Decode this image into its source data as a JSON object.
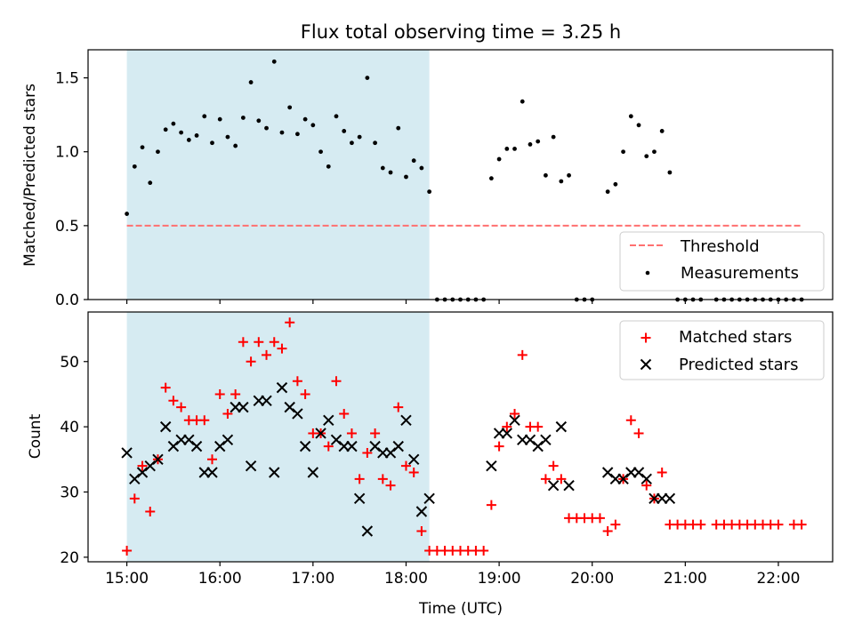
{
  "figure": {
    "title": "Flux total observing time = 3.25 h",
    "xlabel": "Time (UTC)",
    "x_ticks": [
      "15:00",
      "16:00",
      "17:00",
      "18:00",
      "19:00",
      "20:00",
      "21:00",
      "22:00"
    ]
  },
  "colors": {
    "shade": "#add8e6",
    "threshold": "#ff7070",
    "measurements": "#000000",
    "matched": "#ff0000",
    "predicted": "#000000"
  },
  "chart_data": [
    {
      "type": "scatter",
      "ylabel": "Matched/Predicted stars",
      "xlim": [
        "14:35",
        "22:35"
      ],
      "ylim": [
        0,
        1.69
      ],
      "y_ticks": [
        "0.0",
        "0.5",
        "1.0",
        "1.5"
      ],
      "observing_window": [
        "15:00",
        "18:15"
      ],
      "legend": {
        "position": "lower right",
        "entries": [
          "Threshold",
          "Measurements"
        ]
      },
      "threshold": {
        "name": "Threshold",
        "y": 0.5,
        "x_range": [
          "15:00",
          "22:15"
        ]
      },
      "series": [
        {
          "name": "Measurements",
          "points": [
            [
              "15:00",
              0.58
            ],
            [
              "15:05",
              0.9
            ],
            [
              "15:10",
              1.03
            ],
            [
              "15:15",
              0.79
            ],
            [
              "15:20",
              1.0
            ],
            [
              "15:25",
              1.15
            ],
            [
              "15:30",
              1.19
            ],
            [
              "15:35",
              1.13
            ],
            [
              "15:40",
              1.08
            ],
            [
              "15:45",
              1.11
            ],
            [
              "15:50",
              1.24
            ],
            [
              "15:55",
              1.06
            ],
            [
              "16:00",
              1.22
            ],
            [
              "16:05",
              1.1
            ],
            [
              "16:10",
              1.04
            ],
            [
              "16:15",
              1.23
            ],
            [
              "16:20",
              1.47
            ],
            [
              "16:25",
              1.21
            ],
            [
              "16:30",
              1.16
            ],
            [
              "16:35",
              1.61
            ],
            [
              "16:40",
              1.13
            ],
            [
              "16:45",
              1.3
            ],
            [
              "16:50",
              1.12
            ],
            [
              "16:55",
              1.22
            ],
            [
              "17:00",
              1.18
            ],
            [
              "17:05",
              1.0
            ],
            [
              "17:10",
              0.9
            ],
            [
              "17:15",
              1.24
            ],
            [
              "17:20",
              1.14
            ],
            [
              "17:25",
              1.06
            ],
            [
              "17:30",
              1.1
            ],
            [
              "17:35",
              1.5
            ],
            [
              "17:40",
              1.06
            ],
            [
              "17:45",
              0.89
            ],
            [
              "17:50",
              0.86
            ],
            [
              "17:55",
              1.16
            ],
            [
              "18:00",
              0.83
            ],
            [
              "18:05",
              0.94
            ],
            [
              "18:10",
              0.89
            ],
            [
              "18:15",
              0.73
            ],
            [
              "18:20",
              0.0
            ],
            [
              "18:25",
              0.0
            ],
            [
              "18:30",
              0.0
            ],
            [
              "18:35",
              0.0
            ],
            [
              "18:40",
              0.0
            ],
            [
              "18:45",
              0.0
            ],
            [
              "18:50",
              0.0
            ],
            [
              "18:55",
              0.82
            ],
            [
              "19:00",
              0.95
            ],
            [
              "19:05",
              1.02
            ],
            [
              "19:10",
              1.02
            ],
            [
              "19:15",
              1.34
            ],
            [
              "19:20",
              1.05
            ],
            [
              "19:25",
              1.07
            ],
            [
              "19:30",
              0.84
            ],
            [
              "19:35",
              1.1
            ],
            [
              "19:40",
              0.8
            ],
            [
              "19:45",
              0.84
            ],
            [
              "19:50",
              0.0
            ],
            [
              "19:55",
              0.0
            ],
            [
              "20:00",
              0.0
            ],
            [
              "20:10",
              0.73
            ],
            [
              "20:15",
              0.78
            ],
            [
              "20:20",
              1.0
            ],
            [
              "20:25",
              1.24
            ],
            [
              "20:30",
              1.18
            ],
            [
              "20:35",
              0.97
            ],
            [
              "20:40",
              1.0
            ],
            [
              "20:45",
              1.14
            ],
            [
              "20:50",
              0.86
            ],
            [
              "20:55",
              0.0
            ],
            [
              "21:00",
              0.0
            ],
            [
              "21:05",
              0.0
            ],
            [
              "21:10",
              0.0
            ],
            [
              "21:20",
              0.0
            ],
            [
              "21:25",
              0.0
            ],
            [
              "21:30",
              0.0
            ],
            [
              "21:35",
              0.0
            ],
            [
              "21:40",
              0.0
            ],
            [
              "21:45",
              0.0
            ],
            [
              "21:50",
              0.0
            ],
            [
              "21:55",
              0.0
            ],
            [
              "22:00",
              0.0
            ],
            [
              "22:05",
              0.0
            ],
            [
              "22:10",
              0.0
            ],
            [
              "22:15",
              0.0
            ]
          ]
        }
      ]
    },
    {
      "type": "scatter",
      "ylabel": "Count",
      "xlim": [
        "14:35",
        "22:35"
      ],
      "ylim": [
        19.3,
        57.6
      ],
      "y_ticks": [
        "20",
        "30",
        "40",
        "50"
      ],
      "observing_window": [
        "15:00",
        "18:15"
      ],
      "legend": {
        "position": "upper right",
        "entries": [
          "Matched stars",
          "Predicted stars"
        ]
      },
      "series": [
        {
          "name": "Matched stars",
          "marker": "plus",
          "points": [
            [
              "15:00",
              21
            ],
            [
              "15:05",
              29
            ],
            [
              "15:10",
              34
            ],
            [
              "15:15",
              27
            ],
            [
              "15:20",
              35
            ],
            [
              "15:25",
              46
            ],
            [
              "15:30",
              44
            ],
            [
              "15:35",
              43
            ],
            [
              "15:40",
              41
            ],
            [
              "15:45",
              41
            ],
            [
              "15:50",
              41
            ],
            [
              "15:55",
              35
            ],
            [
              "16:00",
              45
            ],
            [
              "16:05",
              42
            ],
            [
              "16:10",
              45
            ],
            [
              "16:15",
              53
            ],
            [
              "16:20",
              50
            ],
            [
              "16:25",
              53
            ],
            [
              "16:30",
              51
            ],
            [
              "16:35",
              53
            ],
            [
              "16:40",
              52
            ],
            [
              "16:45",
              56
            ],
            [
              "16:50",
              47
            ],
            [
              "16:55",
              45
            ],
            [
              "17:00",
              39
            ],
            [
              "17:05",
              39
            ],
            [
              "17:10",
              37
            ],
            [
              "17:15",
              47
            ],
            [
              "17:20",
              42
            ],
            [
              "17:25",
              39
            ],
            [
              "17:30",
              32
            ],
            [
              "17:35",
              36
            ],
            [
              "17:40",
              39
            ],
            [
              "17:45",
              32
            ],
            [
              "17:50",
              31
            ],
            [
              "17:55",
              43
            ],
            [
              "18:00",
              34
            ],
            [
              "18:05",
              33
            ],
            [
              "18:10",
              24
            ],
            [
              "18:15",
              21
            ],
            [
              "18:20",
              21
            ],
            [
              "18:25",
              21
            ],
            [
              "18:30",
              21
            ],
            [
              "18:35",
              21
            ],
            [
              "18:40",
              21
            ],
            [
              "18:45",
              21
            ],
            [
              "18:50",
              21
            ],
            [
              "18:55",
              28
            ],
            [
              "19:00",
              37
            ],
            [
              "19:05",
              40
            ],
            [
              "19:10",
              42
            ],
            [
              "19:15",
              51
            ],
            [
              "19:20",
              40
            ],
            [
              "19:25",
              40
            ],
            [
              "19:30",
              32
            ],
            [
              "19:35",
              34
            ],
            [
              "19:40",
              32
            ],
            [
              "19:45",
              26
            ],
            [
              "19:50",
              26
            ],
            [
              "19:55",
              26
            ],
            [
              "20:00",
              26
            ],
            [
              "20:05",
              26
            ],
            [
              "20:10",
              24
            ],
            [
              "20:15",
              25
            ],
            [
              "20:20",
              32
            ],
            [
              "20:25",
              41
            ],
            [
              "20:30",
              39
            ],
            [
              "20:35",
              31
            ],
            [
              "20:40",
              29
            ],
            [
              "20:45",
              33
            ],
            [
              "20:50",
              25
            ],
            [
              "20:55",
              25
            ],
            [
              "21:00",
              25
            ],
            [
              "21:05",
              25
            ],
            [
              "21:10",
              25
            ],
            [
              "21:20",
              25
            ],
            [
              "21:25",
              25
            ],
            [
              "21:30",
              25
            ],
            [
              "21:35",
              25
            ],
            [
              "21:40",
              25
            ],
            [
              "21:45",
              25
            ],
            [
              "21:50",
              25
            ],
            [
              "21:55",
              25
            ],
            [
              "22:00",
              25
            ],
            [
              "22:10",
              25
            ],
            [
              "22:15",
              25
            ]
          ]
        },
        {
          "name": "Predicted stars",
          "marker": "x",
          "points": [
            [
              "15:00",
              36
            ],
            [
              "15:05",
              32
            ],
            [
              "15:10",
              33
            ],
            [
              "15:15",
              34
            ],
            [
              "15:20",
              35
            ],
            [
              "15:25",
              40
            ],
            [
              "15:30",
              37
            ],
            [
              "15:35",
              38
            ],
            [
              "15:40",
              38
            ],
            [
              "15:45",
              37
            ],
            [
              "15:50",
              33
            ],
            [
              "15:55",
              33
            ],
            [
              "16:00",
              37
            ],
            [
              "16:05",
              38
            ],
            [
              "16:10",
              43
            ],
            [
              "16:15",
              43
            ],
            [
              "16:20",
              34
            ],
            [
              "16:25",
              44
            ],
            [
              "16:30",
              44
            ],
            [
              "16:35",
              33
            ],
            [
              "16:40",
              46
            ],
            [
              "16:45",
              43
            ],
            [
              "16:50",
              42
            ],
            [
              "16:55",
              37
            ],
            [
              "17:00",
              33
            ],
            [
              "17:05",
              39
            ],
            [
              "17:10",
              41
            ],
            [
              "17:15",
              38
            ],
            [
              "17:20",
              37
            ],
            [
              "17:25",
              37
            ],
            [
              "17:30",
              29
            ],
            [
              "17:35",
              24
            ],
            [
              "17:40",
              37
            ],
            [
              "17:45",
              36
            ],
            [
              "17:50",
              36
            ],
            [
              "17:55",
              37
            ],
            [
              "18:00",
              41
            ],
            [
              "18:05",
              35
            ],
            [
              "18:10",
              27
            ],
            [
              "18:15",
              29
            ],
            [
              "18:55",
              34
            ],
            [
              "19:00",
              39
            ],
            [
              "19:05",
              39
            ],
            [
              "19:10",
              41
            ],
            [
              "19:15",
              38
            ],
            [
              "19:20",
              38
            ],
            [
              "19:25",
              37
            ],
            [
              "19:30",
              38
            ],
            [
              "19:35",
              31
            ],
            [
              "19:40",
              40
            ],
            [
              "19:45",
              31
            ],
            [
              "20:10",
              33
            ],
            [
              "20:15",
              32
            ],
            [
              "20:20",
              32
            ],
            [
              "20:25",
              33
            ],
            [
              "20:30",
              33
            ],
            [
              "20:35",
              32
            ],
            [
              "20:40",
              29
            ],
            [
              "20:45",
              29
            ],
            [
              "20:50",
              29
            ]
          ]
        }
      ]
    }
  ]
}
